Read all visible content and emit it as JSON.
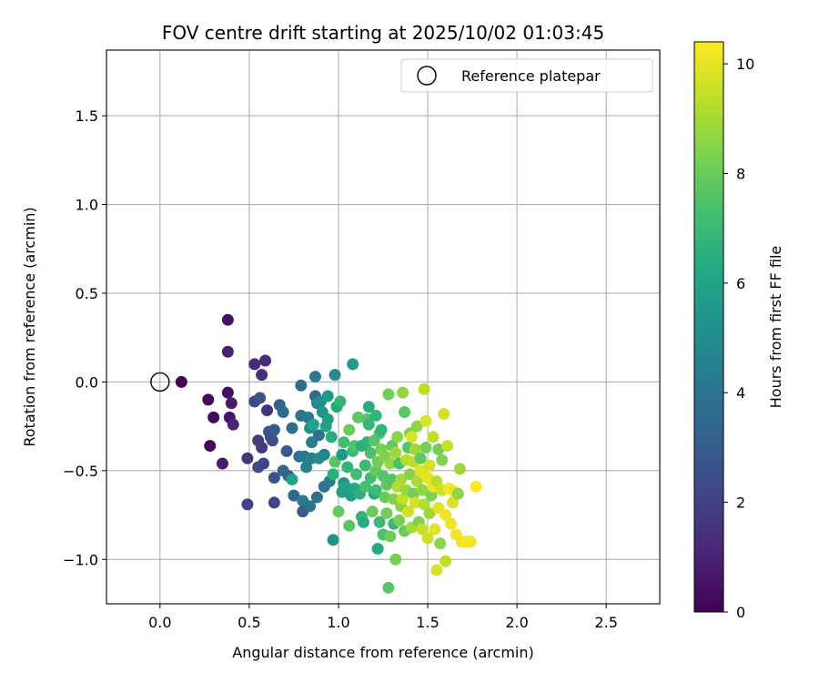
{
  "chart_data": {
    "type": "scatter",
    "title": "FOV centre drift starting at 2025/10/02 01:03:45",
    "xlabel": "Angular distance from reference (arcmin)",
    "ylabel": "Rotation from reference (arcmin)",
    "xlim": [
      -0.3,
      2.8
    ],
    "ylim": [
      -1.25,
      1.87
    ],
    "xticks": [
      0.0,
      0.5,
      1.0,
      1.5,
      2.0,
      2.5
    ],
    "xtick_labels": [
      "0.0",
      "0.5",
      "1.0",
      "1.5",
      "2.0",
      "2.5"
    ],
    "yticks": [
      -1.0,
      -0.5,
      0.0,
      0.5,
      1.0,
      1.5
    ],
    "ytick_labels": [
      "−1.0",
      "−0.5",
      "0.0",
      "0.5",
      "1.0",
      "1.5"
    ],
    "grid": true,
    "legend": {
      "placement": "top-right",
      "label": "Reference platepar"
    },
    "reference_point": {
      "x": 0.0,
      "y": 0.0
    },
    "colorbar": {
      "label": "Hours from first FF file",
      "range": [
        0,
        10.4
      ],
      "ticks": [
        0,
        2,
        4,
        6,
        8,
        10
      ],
      "tick_labels": [
        "0",
        "2",
        "4",
        "6",
        "8",
        "10"
      ],
      "colormap": [
        "#440154",
        "#482475",
        "#414487",
        "#355f8d",
        "#2a788e",
        "#21918c",
        "#22a884",
        "#44bf70",
        "#7ad151",
        "#bddf26",
        "#fde725"
      ]
    },
    "points": [
      [
        0.12,
        0.0,
        0.0
      ],
      [
        0.27,
        -0.1,
        0.2
      ],
      [
        0.3,
        -0.2,
        0.25
      ],
      [
        0.28,
        -0.36,
        0.15
      ],
      [
        0.35,
        -0.46,
        0.9
      ],
      [
        0.38,
        -0.06,
        0.4
      ],
      [
        0.38,
        0.35,
        0.5
      ],
      [
        0.38,
        0.17,
        1.0
      ],
      [
        0.39,
        -0.2,
        0.6
      ],
      [
        0.4,
        -0.12,
        0.8
      ],
      [
        0.41,
        -0.24,
        1.1
      ],
      [
        0.49,
        -0.43,
        1.6
      ],
      [
        0.49,
        -0.69,
        2.0
      ],
      [
        0.53,
        0.1,
        1.2
      ],
      [
        0.53,
        -0.11,
        2.2
      ],
      [
        0.55,
        -0.33,
        1.9
      ],
      [
        0.55,
        -0.48,
        2.4
      ],
      [
        0.56,
        -0.09,
        2.6
      ],
      [
        0.57,
        0.04,
        1.4
      ],
      [
        0.57,
        -0.37,
        1.7
      ],
      [
        0.58,
        -0.46,
        2.1
      ],
      [
        0.59,
        0.12,
        1.3
      ],
      [
        0.6,
        -0.16,
        1.5
      ],
      [
        0.61,
        -0.28,
        2.8
      ],
      [
        0.62,
        -0.31,
        2.3
      ],
      [
        0.63,
        -0.33,
        2.5
      ],
      [
        0.64,
        -0.54,
        2.7
      ],
      [
        0.64,
        -0.27,
        3.0
      ],
      [
        0.64,
        -0.68,
        2.2
      ],
      [
        0.67,
        -0.13,
        3.2
      ],
      [
        0.69,
        -0.17,
        3.6
      ],
      [
        0.69,
        -0.5,
        3.4
      ],
      [
        0.71,
        -0.39,
        3.1
      ],
      [
        0.72,
        -0.53,
        3.3
      ],
      [
        0.74,
        -0.26,
        3.8
      ],
      [
        0.74,
        -0.55,
        6.0
      ],
      [
        0.75,
        -0.64,
        3.5
      ],
      [
        0.78,
        -0.42,
        3.9
      ],
      [
        0.79,
        -0.02,
        3.7
      ],
      [
        0.79,
        -0.19,
        4.0
      ],
      [
        0.8,
        -0.67,
        4.2
      ],
      [
        0.8,
        -0.73,
        2.9
      ],
      [
        0.81,
        -0.42,
        4.1
      ],
      [
        0.82,
        -0.48,
        4.5
      ],
      [
        0.83,
        -0.2,
        4.3
      ],
      [
        0.84,
        -0.26,
        5.3
      ],
      [
        0.84,
        -0.7,
        4.0
      ],
      [
        0.85,
        -0.34,
        4.4
      ],
      [
        0.85,
        -0.43,
        4.6
      ],
      [
        0.86,
        -0.24,
        6.0
      ],
      [
        0.87,
        0.03,
        4.2
      ],
      [
        0.87,
        -0.08,
        3.6
      ],
      [
        0.88,
        -0.12,
        4.8
      ],
      [
        0.88,
        -0.65,
        3.8
      ],
      [
        0.89,
        -0.3,
        4.0
      ],
      [
        0.89,
        -0.43,
        4.9
      ],
      [
        0.9,
        -0.11,
        5.0
      ],
      [
        0.91,
        -0.17,
        5.4
      ],
      [
        0.92,
        -0.41,
        4.7
      ],
      [
        0.92,
        -0.59,
        3.9
      ],
      [
        0.93,
        -0.25,
        6.0
      ],
      [
        0.94,
        -0.21,
        5.8
      ],
      [
        0.94,
        -0.08,
        5.6
      ],
      [
        0.95,
        -0.56,
        4.4
      ],
      [
        0.96,
        -0.31,
        6.4
      ],
      [
        0.97,
        -0.89,
        5.2
      ],
      [
        0.97,
        -0.52,
        6.6
      ],
      [
        0.98,
        0.04,
        5.0
      ],
      [
        0.98,
        -0.45,
        7.7
      ],
      [
        0.99,
        -0.14,
        6.2
      ],
      [
        1.0,
        -0.73,
        7.9
      ],
      [
        1.01,
        -0.11,
        6.8
      ],
      [
        1.02,
        -0.62,
        5.8
      ],
      [
        1.02,
        -0.41,
        5.5
      ],
      [
        1.03,
        -0.57,
        5.3
      ],
      [
        1.03,
        -0.34,
        7.2
      ],
      [
        1.04,
        -0.59,
        6.0
      ],
      [
        1.05,
        -0.48,
        6.8
      ],
      [
        1.06,
        -0.81,
        7.6
      ],
      [
        1.06,
        -0.27,
        8.0
      ],
      [
        1.07,
        -0.64,
        5.7
      ],
      [
        1.08,
        -0.39,
        6.9
      ],
      [
        1.08,
        0.1,
        5.8
      ],
      [
        1.09,
        -0.36,
        7.5
      ],
      [
        1.09,
        -0.6,
        6.3
      ],
      [
        1.1,
        -0.52,
        7.2
      ],
      [
        1.11,
        -0.2,
        7.8
      ],
      [
        1.12,
        -0.63,
        6.6
      ],
      [
        1.13,
        -0.36,
        6.5
      ],
      [
        1.13,
        -0.76,
        6.8
      ],
      [
        1.14,
        -0.79,
        6.4
      ],
      [
        1.15,
        -0.59,
        7.3
      ],
      [
        1.15,
        -0.47,
        7.0
      ],
      [
        1.16,
        -0.21,
        7.6
      ],
      [
        1.16,
        -0.34,
        6.7
      ],
      [
        1.17,
        -0.14,
        6.4
      ],
      [
        1.17,
        -0.24,
        6.9
      ],
      [
        1.18,
        -0.4,
        7.4
      ],
      [
        1.18,
        -0.54,
        7.2
      ],
      [
        1.19,
        -0.73,
        8.0
      ],
      [
        1.2,
        -0.63,
        6.2
      ],
      [
        1.2,
        -0.33,
        7.7
      ],
      [
        1.21,
        -0.5,
        7.9
      ],
      [
        1.21,
        -0.19,
        6.8
      ],
      [
        1.21,
        -0.61,
        7.1
      ],
      [
        1.22,
        -0.45,
        8.1
      ],
      [
        1.22,
        -0.94,
        6.3
      ],
      [
        1.23,
        -0.29,
        7.5
      ],
      [
        1.23,
        -0.79,
        7.0
      ],
      [
        1.24,
        -0.38,
        8.3
      ],
      [
        1.24,
        -0.27,
        6.8
      ],
      [
        1.25,
        -0.53,
        7.6
      ],
      [
        1.25,
        -0.86,
        7.4
      ],
      [
        1.26,
        -0.65,
        8.0
      ],
      [
        1.26,
        -0.42,
        8.4
      ],
      [
        1.27,
        -0.58,
        7.8
      ],
      [
        1.27,
        -0.74,
        8.2
      ],
      [
        1.28,
        -1.16,
        7.6
      ],
      [
        1.28,
        -0.07,
        8.1
      ],
      [
        1.29,
        -0.46,
        8.7
      ],
      [
        1.29,
        -0.87,
        8.1
      ],
      [
        1.3,
        -0.36,
        7.9
      ],
      [
        1.3,
        -0.55,
        7.5
      ],
      [
        1.31,
        -0.66,
        8.4
      ],
      [
        1.31,
        -0.8,
        6.9
      ],
      [
        1.32,
        -1.0,
        8.2
      ],
      [
        1.32,
        -0.4,
        8.9
      ],
      [
        1.33,
        -0.31,
        8.6
      ],
      [
        1.33,
        -0.59,
        9.2
      ],
      [
        1.34,
        -0.78,
        8.3
      ],
      [
        1.34,
        -0.46,
        7.4
      ],
      [
        1.35,
        -0.7,
        8.5
      ],
      [
        1.35,
        -0.55,
        9.0
      ],
      [
        1.36,
        -0.06,
        8.7
      ],
      [
        1.36,
        -0.66,
        9.5
      ],
      [
        1.37,
        -0.17,
        7.7
      ],
      [
        1.37,
        -0.84,
        8.0
      ],
      [
        1.38,
        -0.44,
        9.3
      ],
      [
        1.38,
        -0.61,
        8.8
      ],
      [
        1.39,
        -0.37,
        7.6
      ],
      [
        1.39,
        -0.73,
        9.6
      ],
      [
        1.4,
        -0.29,
        8.3
      ],
      [
        1.4,
        -0.52,
        8.5
      ],
      [
        1.41,
        -0.31,
        9.8
      ],
      [
        1.41,
        -0.82,
        9.0
      ],
      [
        1.42,
        -0.45,
        9.4
      ],
      [
        1.42,
        -0.63,
        8.1
      ],
      [
        1.43,
        -0.38,
        8.9
      ],
      [
        1.43,
        -0.68,
        9.7
      ],
      [
        1.44,
        -0.25,
        8.6
      ],
      [
        1.44,
        -0.56,
        9.1
      ],
      [
        1.45,
        -0.79,
        8.4
      ],
      [
        1.46,
        -0.5,
        9.9
      ],
      [
        1.46,
        -0.43,
        7.8
      ],
      [
        1.47,
        -0.83,
        9.5
      ],
      [
        1.47,
        -0.61,
        8.7
      ],
      [
        1.48,
        -0.04,
        9.3
      ],
      [
        1.48,
        -0.69,
        9.2
      ],
      [
        1.49,
        -0.22,
        9.8
      ],
      [
        1.49,
        -0.37,
        8.2
      ],
      [
        1.5,
        -0.88,
        9.6
      ],
      [
        1.5,
        -0.54,
        10.0
      ],
      [
        1.51,
        -0.74,
        8.9
      ],
      [
        1.51,
        -0.47,
        9.7
      ],
      [
        1.52,
        -0.64,
        8.3
      ],
      [
        1.53,
        -0.31,
        9.4
      ],
      [
        1.53,
        -0.59,
        10.1
      ],
      [
        1.54,
        -0.83,
        9.9
      ],
      [
        1.55,
        -1.06,
        9.8
      ],
      [
        1.55,
        -0.56,
        9.3
      ],
      [
        1.56,
        -0.38,
        8.1
      ],
      [
        1.56,
        -0.71,
        10.0
      ],
      [
        1.57,
        -0.91,
        8.6
      ],
      [
        1.58,
        -0.44,
        8.4
      ],
      [
        1.58,
        -0.61,
        9.6
      ],
      [
        1.59,
        -0.18,
        9.7
      ],
      [
        1.6,
        -0.75,
        10.2
      ],
      [
        1.6,
        -1.01,
        9.4
      ],
      [
        1.61,
        -0.36,
        9.5
      ],
      [
        1.62,
        -0.6,
        10.3
      ],
      [
        1.63,
        -0.8,
        10.1
      ],
      [
        1.64,
        -0.68,
        9.8
      ],
      [
        1.65,
        -0.62,
        10.0
      ],
      [
        1.66,
        -0.86,
        10.2
      ],
      [
        1.67,
        -0.63,
        8.6
      ],
      [
        1.68,
        -0.49,
        8.9
      ],
      [
        1.69,
        -0.9,
        10.1
      ],
      [
        1.72,
        -0.9,
        10.3
      ],
      [
        1.74,
        -0.9,
        10.2
      ],
      [
        1.77,
        -0.59,
        10.4
      ]
    ]
  }
}
